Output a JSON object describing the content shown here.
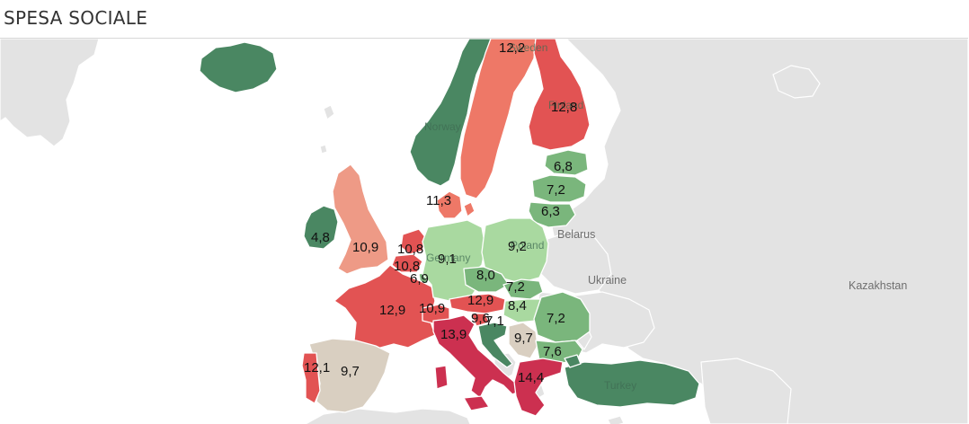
{
  "title": "SPESA SOCIALE",
  "colors": {
    "dark_green": "#4a8762",
    "mid_green": "#7ab67c",
    "light_green": "#a9d9a0",
    "beige": "#d9cfc1",
    "light_red": "#ee9a86",
    "salmon": "#ee7867",
    "red": "#e25353",
    "crimson": "#cc3050",
    "no_data": "#e3e3e3"
  },
  "geo_labels": {
    "norway": "Norway",
    "sweden": "Sweden",
    "finland": "Finland",
    "belarus": "Belarus",
    "ukraine": "Ukraine",
    "kazakhstan": "Kazakhstan",
    "turkey": "Turkey",
    "poland": "Poland",
    "germany": "Germany"
  },
  "values": {
    "sweden": "12,2",
    "finland": "12,8",
    "estonia": "6,8",
    "latvia": "7,2",
    "lithuania": "6,3",
    "denmark": "11,3",
    "ireland": "4,8",
    "uk": "10,9",
    "netherlands": "10,8",
    "belgium": "10,8",
    "luxembourg": "6,9",
    "germany": "9,1",
    "poland": "9,2",
    "czechia": "8,0",
    "slovakia": "7,2",
    "austria": "12,9",
    "hungary": "8,4",
    "romania": "7,2",
    "france": "12,9",
    "switzerland": "10,9",
    "italy": "13,9",
    "slovenia": "9,6",
    "croatia": "7,1",
    "serbia": "9,7",
    "bulgaria": "7,6",
    "greece": "14,4",
    "spain": "9,7",
    "portugal": "12,1"
  }
}
